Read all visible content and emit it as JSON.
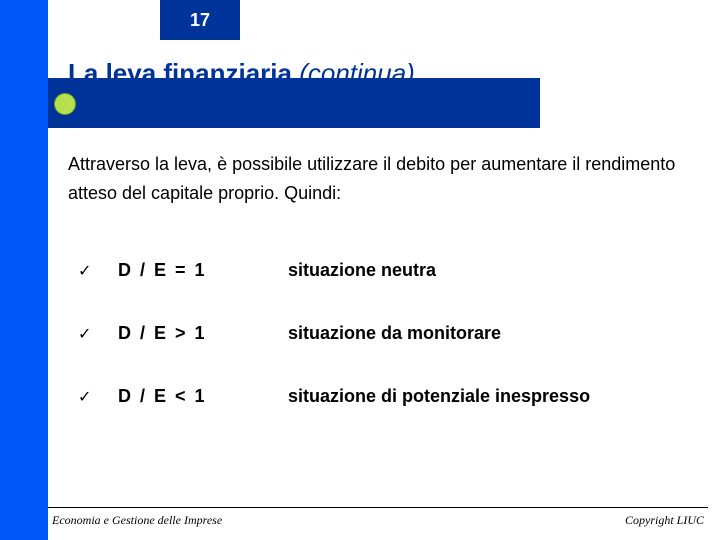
{
  "page_number": "17",
  "title_bold": "La leva finanziaria",
  "title_italic": "(continua)",
  "intro": "Attraverso la leva, è possibile utilizzare il debito per aumentare il rendimento atteso del capitale proprio. Quindi:",
  "rows": [
    {
      "check": "✓",
      "formula": "D / E = 1",
      "desc": "situazione neutra"
    },
    {
      "check": "✓",
      "formula": "D / E > 1",
      "desc": "situazione da monitorare"
    },
    {
      "check": "✓",
      "formula": "D / E < 1",
      "desc": "situazione di potenziale inespresso"
    }
  ],
  "footer_left": "Economia e Gestione delle Imprese",
  "footer_right": "Copyright LIUC",
  "colors": {
    "stripe": "#0058f8",
    "dark_blue": "#003399",
    "bullet_green": "#b6e050",
    "text_black": "#000000",
    "white": "#ffffff"
  }
}
